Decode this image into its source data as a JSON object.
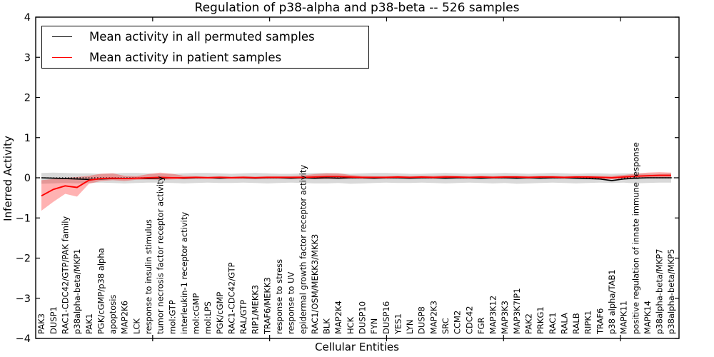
{
  "title": "Regulation of p38-alpha and p38-beta -- 526 samples",
  "legend": {
    "items": [
      {
        "label": "Mean activity in all permuted samples",
        "color": "#000000"
      },
      {
        "label": "Mean activity in patient samples",
        "color": "#ff0000"
      }
    ]
  },
  "axes": {
    "xlabel": "Cellular Entities",
    "ylabel": "Inferred Activity",
    "ytick_labels": [
      "4",
      "3",
      "2",
      "1",
      "0",
      "−1",
      "−2",
      "−3",
      "−4"
    ]
  },
  "colors": {
    "patient_line": "#ff0000",
    "permuted_line": "#000000",
    "patient_band": "#ff0000",
    "permuted_band": "#888888",
    "zero_line": "#000000",
    "spine": "#000000"
  },
  "chart_data": {
    "type": "line",
    "title": "Regulation of p38-alpha and p38-beta -- 526 samples",
    "xlabel": "Cellular Entities",
    "ylabel": "Inferred Activity",
    "ylim": [
      -4,
      4
    ],
    "yticks": [
      4,
      3,
      2,
      1,
      0,
      -1,
      -2,
      -3,
      -4
    ],
    "x_axis_range": [
      0,
      55
    ],
    "x_axis_tick_values": [
      10,
      20,
      30,
      40,
      50
    ],
    "grid": false,
    "legend_position": "upper left",
    "zero_line": "dotted",
    "categories": [
      "PAK3",
      "DUSP1",
      "RAC1-CDC42/GTP/PAK family",
      "p38alpha-beta/MKP1",
      "PAK1",
      "PGK/cGMP/p38 alpha",
      "apoptosis",
      "MAP2K6",
      "LCK",
      "response to insulin stimulus",
      "tumor necrosis factor receptor activity",
      "mol:GTP",
      "interleukin-1 receptor activity",
      "mol:cGMP",
      "mol:LPS",
      "PGK/cGMP",
      "RAC1-CDC42/GTP",
      "RAL/GTP",
      "RIP1/MEKK3",
      "TRAF6/MEKK3",
      "response to stress",
      "response to UV",
      "epidermal growth factor receptor activity",
      "RAC1/OSM/MEKK3/MKK3",
      "BLK",
      "MAP2K4",
      "HCK",
      "DUSP10",
      "FYN",
      "DUSP16",
      "YES1",
      "LYN",
      "DUSP8",
      "MAP2K3",
      "SRC",
      "CCM2",
      "CDC42",
      "FGR",
      "MAP3K12",
      "MAP3K3",
      "MAP3K7IP1",
      "PAK2",
      "PRKG1",
      "RAC1",
      "RALA",
      "RALB",
      "RIPK1",
      "TRAF6",
      "p38 alpha/TAB1",
      "MAPK11",
      "positive regulation of innate immune response",
      "MAPK14",
      "p38alpha-beta/MKP7",
      "p38alpha-beta/MKP5"
    ],
    "series": [
      {
        "name": "Mean activity in all permuted samples",
        "color": "#000000",
        "line_width": 1.6,
        "values": [
          0.0,
          -0.01,
          -0.02,
          -0.03,
          -0.04,
          -0.03,
          -0.02,
          -0.02,
          -0.01,
          -0.02,
          -0.01,
          0.0,
          -0.01,
          0.0,
          0.0,
          -0.01,
          0.0,
          0.0,
          -0.01,
          0.0,
          0.0,
          -0.01,
          0.0,
          -0.01,
          0.0,
          -0.01,
          0.0,
          0.0,
          -0.01,
          0.0,
          0.0,
          -0.01,
          0.0,
          0.0,
          -0.01,
          0.0,
          0.0,
          -0.01,
          0.0,
          0.0,
          -0.01,
          0.0,
          -0.01,
          0.0,
          0.0,
          -0.01,
          -0.02,
          -0.03,
          -0.07,
          -0.03,
          -0.01,
          0.0,
          0.0,
          0.0
        ]
      },
      {
        "name": "Mean activity in patient samples",
        "color": "#ff0000",
        "line_width": 1.9,
        "values": [
          -0.45,
          -0.29,
          -0.2,
          -0.24,
          -0.06,
          -0.02,
          -0.01,
          -0.02,
          -0.01,
          0.0,
          0.01,
          0.0,
          0.0,
          0.01,
          0.0,
          0.01,
          0.0,
          0.01,
          0.0,
          0.01,
          0.01,
          0.01,
          0.01,
          0.02,
          0.03,
          0.03,
          0.02,
          0.01,
          0.01,
          0.01,
          0.02,
          0.01,
          0.02,
          0.01,
          0.02,
          0.02,
          0.01,
          0.02,
          0.01,
          0.02,
          0.02,
          0.01,
          0.02,
          0.02,
          0.01,
          0.02,
          0.02,
          0.01,
          0.0,
          0.02,
          0.04,
          0.05,
          0.06,
          0.06
        ]
      }
    ],
    "bands": [
      {
        "name": "permuted samples range",
        "color": "#888888",
        "opacity": 0.32,
        "upper": [
          0.12,
          0.13,
          0.12,
          0.11,
          0.11,
          0.1,
          0.11,
          0.12,
          0.12,
          0.11,
          0.1,
          0.1,
          0.11,
          0.12,
          0.12,
          0.11,
          0.1,
          0.11,
          0.12,
          0.11,
          0.1,
          0.1,
          0.11,
          0.12,
          0.12,
          0.11,
          0.1,
          0.11,
          0.12,
          0.12,
          0.11,
          0.1,
          0.1,
          0.11,
          0.12,
          0.11,
          0.1,
          0.11,
          0.11,
          0.12,
          0.11,
          0.1,
          0.11,
          0.12,
          0.11,
          0.1,
          0.11,
          0.11,
          0.1,
          0.11,
          0.11,
          0.1,
          0.1,
          0.11
        ],
        "lower": [
          -0.15,
          -0.14,
          -0.13,
          -0.14,
          -0.13,
          -0.12,
          -0.13,
          -0.14,
          -0.13,
          -0.12,
          -0.12,
          -0.13,
          -0.14,
          -0.13,
          -0.12,
          -0.13,
          -0.13,
          -0.12,
          -0.13,
          -0.14,
          -0.13,
          -0.12,
          -0.13,
          -0.14,
          -0.14,
          -0.13,
          -0.15,
          -0.14,
          -0.13,
          -0.12,
          -0.13,
          -0.13,
          -0.12,
          -0.13,
          -0.14,
          -0.13,
          -0.12,
          -0.13,
          -0.14,
          -0.13,
          -0.15,
          -0.14,
          -0.13,
          -0.12,
          -0.13,
          -0.14,
          -0.13,
          -0.12,
          -0.13,
          -0.12,
          -0.14,
          -0.13,
          -0.12,
          -0.12
        ]
      },
      {
        "name": "patient samples range",
        "color": "#ff0000",
        "opacity": 0.3,
        "upper": [
          -0.06,
          -0.03,
          0.0,
          0.02,
          0.05,
          0.1,
          0.11,
          0.05,
          0.04,
          0.09,
          0.13,
          0.1,
          0.05,
          0.04,
          0.03,
          0.04,
          0.03,
          0.04,
          0.03,
          0.04,
          0.04,
          0.04,
          0.06,
          0.09,
          0.11,
          0.11,
          0.07,
          0.05,
          0.04,
          0.04,
          0.05,
          0.04,
          0.05,
          0.05,
          0.06,
          0.05,
          0.04,
          0.05,
          0.04,
          0.05,
          0.05,
          0.04,
          0.05,
          0.05,
          0.04,
          0.05,
          0.05,
          0.05,
          0.05,
          0.07,
          0.1,
          0.13,
          0.14,
          0.13
        ],
        "lower": [
          -0.82,
          -0.6,
          -0.4,
          -0.47,
          -0.15,
          -0.08,
          -0.06,
          -0.08,
          -0.05,
          -0.04,
          -0.05,
          -0.04,
          -0.03,
          -0.02,
          -0.02,
          -0.02,
          -0.02,
          -0.02,
          -0.02,
          -0.02,
          -0.02,
          -0.02,
          -0.02,
          -0.03,
          -0.03,
          -0.03,
          -0.02,
          -0.02,
          -0.02,
          -0.02,
          -0.02,
          -0.02,
          -0.02,
          -0.02,
          -0.02,
          -0.02,
          -0.02,
          -0.02,
          -0.02,
          -0.02,
          -0.02,
          -0.02,
          -0.02,
          -0.02,
          -0.02,
          -0.02,
          -0.02,
          -0.02,
          -0.03,
          -0.02,
          -0.01,
          0.0,
          -0.01,
          -0.01
        ]
      }
    ]
  }
}
